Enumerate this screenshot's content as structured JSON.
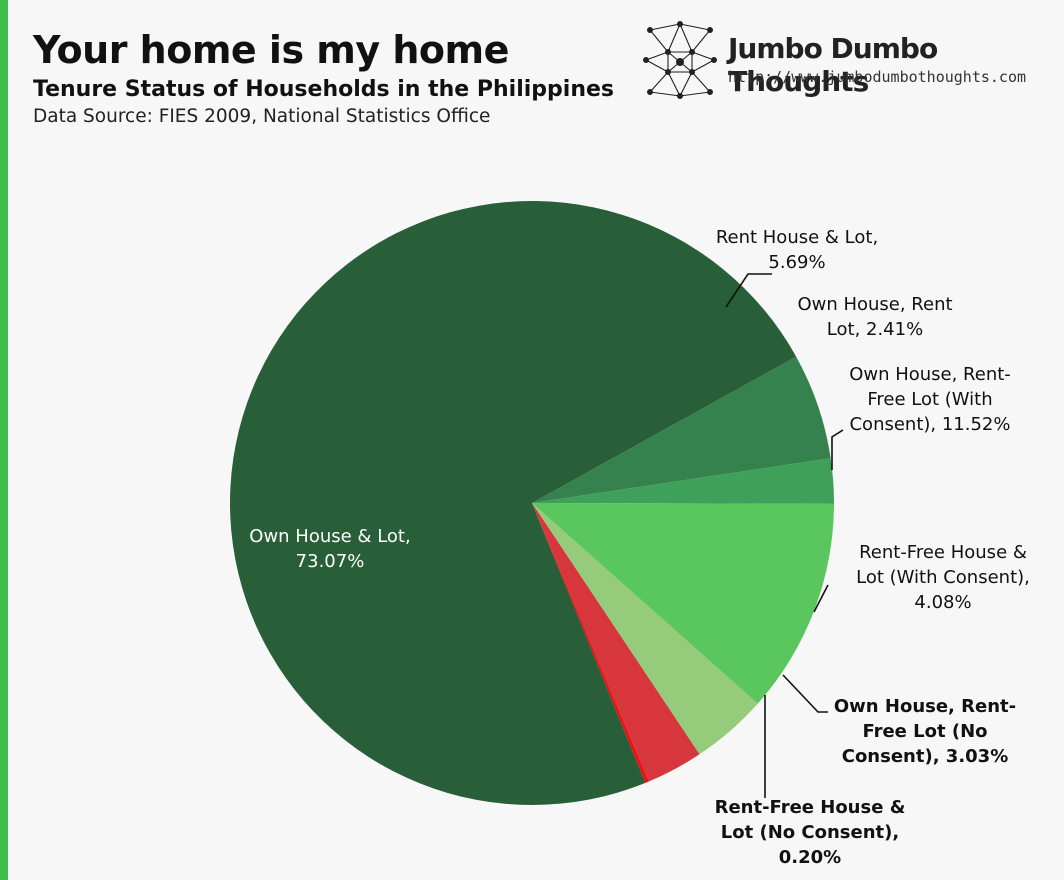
{
  "header": {
    "title": "Your home is my home",
    "subtitle": "Tenure Status of Households in the Philippines",
    "source": "Data Source: FIES 2009, National Statistics Office"
  },
  "brand": {
    "name": "Jumbo Dumbo Thoughts",
    "url": "http://www.jumbodumbothoughts.com"
  },
  "colors": {
    "accent": "#3fbf4a",
    "background": "#f7f7f7"
  },
  "chart_data": {
    "type": "pie",
    "title": "Tenure Status of Households in the Philippines",
    "start_angle_deg": 90,
    "direction": "counterclockwise",
    "slices": [
      {
        "name": "Own House & Lot",
        "value": 73.07,
        "color": "#285f38",
        "label_lines": [
          "Own House & Lot,",
          "73.07%"
        ],
        "label_inside": true,
        "bold": false
      },
      {
        "name": "Rent House & Lot",
        "value": 5.69,
        "color": "#35824e",
        "label_lines": [
          "Rent House & Lot,",
          "5.69%"
        ],
        "label_inside": false,
        "bold": false
      },
      {
        "name": "Own House, Rent Lot",
        "value": 2.41,
        "color": "#3fa05a",
        "label_lines": [
          "Own House, Rent",
          "Lot, 2.41%"
        ],
        "label_inside": false,
        "bold": false
      },
      {
        "name": "Own House, Rent-Free Lot (With Consent)",
        "value": 11.52,
        "color": "#59c65e",
        "label_lines": [
          "Own House, Rent-",
          "Free Lot (With",
          "Consent), 11.52%"
        ],
        "label_inside": false,
        "bold": false
      },
      {
        "name": "Rent-Free House & Lot (With Consent)",
        "value": 4.08,
        "color": "#95cb7a",
        "label_lines": [
          "Rent-Free House &",
          "Lot (With Consent),",
          "4.08%"
        ],
        "label_inside": false,
        "bold": false
      },
      {
        "name": "Own House, Rent-Free Lot (No Consent)",
        "value": 3.03,
        "color": "#d8363d",
        "label_lines": [
          "Own House, Rent-",
          "Free Lot (No",
          "Consent), 3.03%"
        ],
        "label_inside": false,
        "bold": true
      },
      {
        "name": "Rent-Free House & Lot (No Consent)",
        "value": 0.2,
        "color": "#ee1111",
        "label_lines": [
          "Rent-Free House &",
          "Lot (No Consent),",
          "0.20%"
        ],
        "label_inside": false,
        "bold": true
      }
    ]
  }
}
